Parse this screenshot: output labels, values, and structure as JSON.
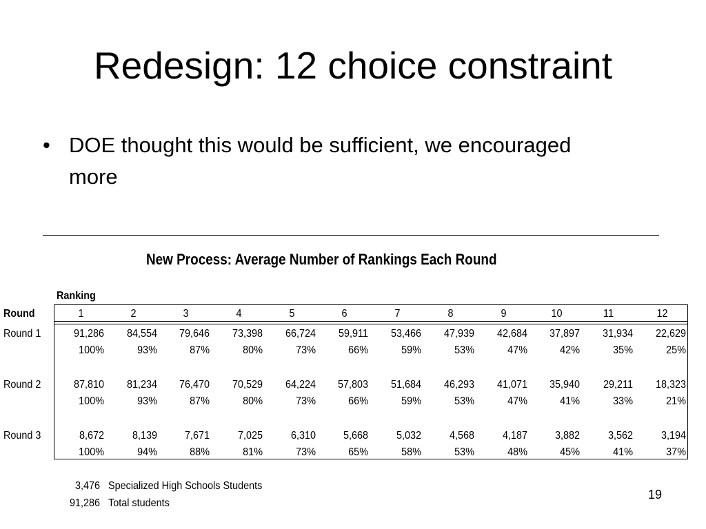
{
  "slide": {
    "title": "Redesign: 12 choice constraint",
    "bullet_symbol": "•",
    "bullet_text": "DOE thought this would be sufficient, we encouraged more",
    "page_number": "19"
  },
  "table": {
    "title": "New Process: Average Number of Rankings Each Round",
    "ranking_label": "Ranking",
    "round_header": "Round",
    "columns": [
      "1",
      "2",
      "3",
      "4",
      "5",
      "6",
      "7",
      "8",
      "9",
      "10",
      "11",
      "12"
    ],
    "rows": [
      {
        "label": "Round 1",
        "counts": [
          "91,286",
          "84,554",
          "79,646",
          "73,398",
          "66,724",
          "59,911",
          "53,466",
          "47,939",
          "42,684",
          "37,897",
          "31,934",
          "22,629"
        ],
        "percents": [
          "100%",
          "93%",
          "87%",
          "80%",
          "73%",
          "66%",
          "59%",
          "53%",
          "47%",
          "42%",
          "35%",
          "25%"
        ]
      },
      {
        "label": "Round 2",
        "counts": [
          "87,810",
          "81,234",
          "76,470",
          "70,529",
          "64,224",
          "57,803",
          "51,684",
          "46,293",
          "41,071",
          "35,940",
          "29,211",
          "18,323"
        ],
        "percents": [
          "100%",
          "93%",
          "87%",
          "80%",
          "73%",
          "66%",
          "59%",
          "53%",
          "47%",
          "41%",
          "33%",
          "21%"
        ]
      },
      {
        "label": "Round 3",
        "counts": [
          "8,672",
          "8,139",
          "7,671",
          "7,025",
          "6,310",
          "5,668",
          "5,032",
          "4,568",
          "4,187",
          "3,882",
          "3,562",
          "3,194"
        ],
        "percents": [
          "100%",
          "94%",
          "88%",
          "81%",
          "73%",
          "65%",
          "58%",
          "53%",
          "48%",
          "45%",
          "41%",
          "37%"
        ]
      }
    ]
  },
  "footnotes": [
    {
      "number": "3,476",
      "text": "Specialized High Schools Students"
    },
    {
      "number": "91,286",
      "text": "Total students"
    }
  ]
}
